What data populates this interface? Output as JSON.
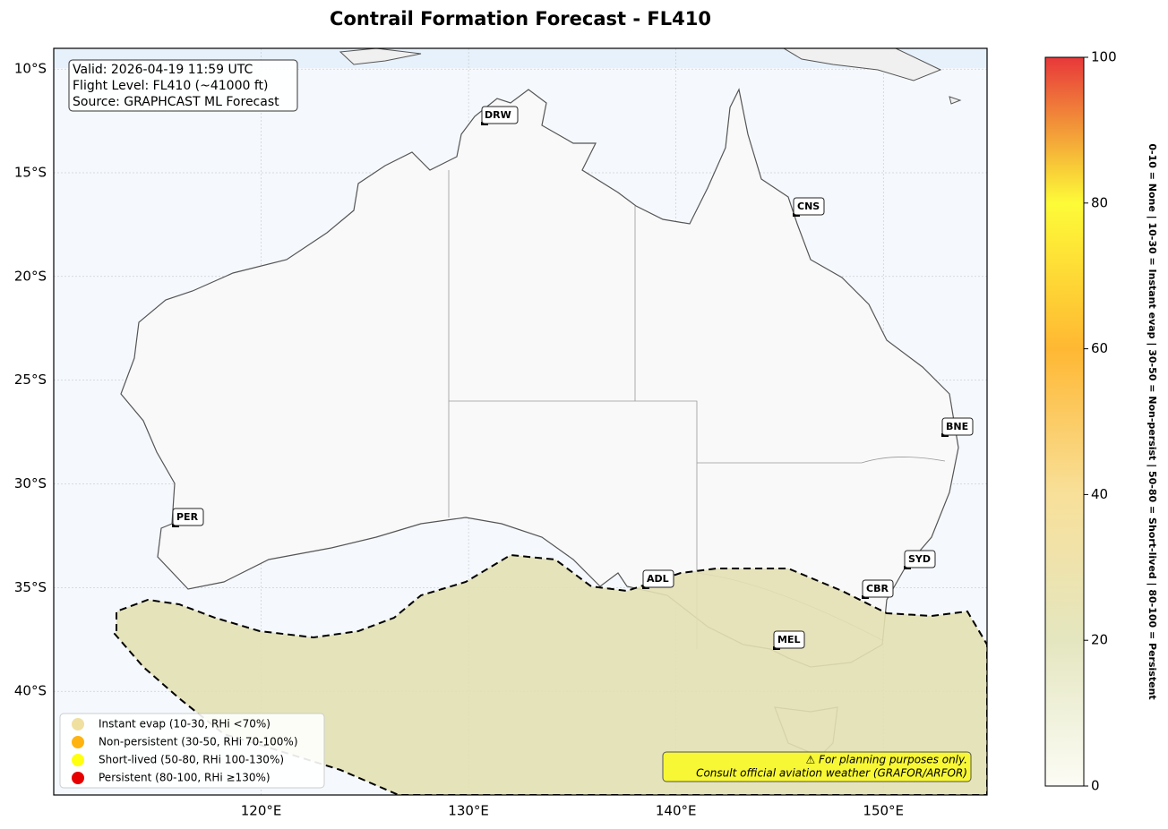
{
  "map": {
    "title": "Contrail Formation Forecast - FL410",
    "lon_lim": [
      110,
      155
    ],
    "lat_lim": [
      -45,
      -9
    ],
    "xticks": [
      {
        "value": 120,
        "label": "120°E"
      },
      {
        "value": 130,
        "label": "130°E"
      },
      {
        "value": 140,
        "label": "140°E"
      },
      {
        "value": 150,
        "label": "150°E"
      }
    ],
    "yticks": [
      {
        "value": -10,
        "label": "10°S"
      },
      {
        "value": -15,
        "label": "15°S"
      },
      {
        "value": -20,
        "label": "20°S"
      },
      {
        "value": -25,
        "label": "25°S"
      },
      {
        "value": -30,
        "label": "30°S"
      },
      {
        "value": -35,
        "label": "35°S"
      },
      {
        "value": -40,
        "label": "40°S"
      }
    ],
    "info": [
      "Valid: 2026-04-19 11:59 UTC",
      "Flight Level: FL410 (~41000 ft)",
      "Source: GRAPHCAST ML Forecast"
    ],
    "cities": [
      "DRW",
      "CNS",
      "BNE",
      "PER",
      "ADL",
      "SYD",
      "CBR",
      "MEL"
    ],
    "legend": [
      {
        "label": "Instant evap (10-30, RHi <70%)",
        "color": "#f0e0a0"
      },
      {
        "label": "Non-persistent (30-50, RHi 70-100%)",
        "color": "#ffb310"
      },
      {
        "label": "Short-lived (50-80, RHi 100-130%)",
        "color": "#ffff10"
      },
      {
        "label": "Persistent (80-100, RHi ≥130%)",
        "color": "#e60000"
      }
    ],
    "disclaimer": [
      "⚠ For planning purposes only.",
      "Consult official aviation weather (GRAFOR/ARFOR)"
    ],
    "colorbar": {
      "lim": [
        0,
        100
      ],
      "ticks": [
        0,
        20,
        40,
        60,
        80,
        100
      ],
      "colors": [
        "#fcfcf5",
        "#e4e6c0",
        "#f8e09a",
        "#ffb833",
        "#fdfb38",
        "#e8383a"
      ],
      "label": "0-10 = None  |  10-30 = Instant evap  |  30-50 = Non-persist  |  50-80 = Short-lived  |  80-100 = Persistent"
    }
  }
}
